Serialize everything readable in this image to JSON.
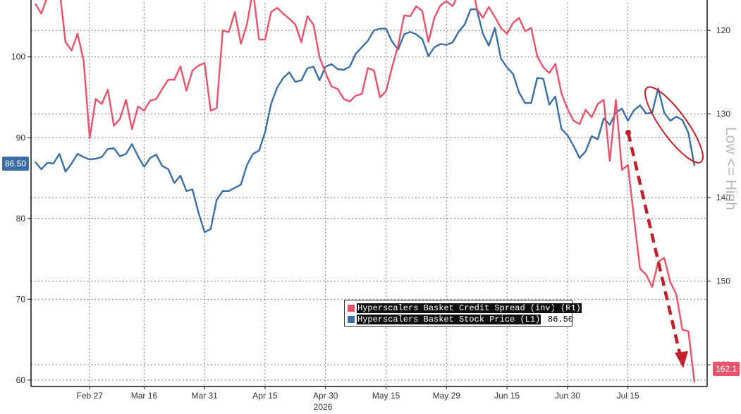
{
  "chart_data": {
    "type": "line",
    "title": "",
    "xlabel": "2026",
    "x_ticks": [
      "Feb 27",
      "Mar 16",
      "Mar 31",
      "Apr 15",
      "Apr 30",
      "May 15",
      "May 29",
      "Jun 15",
      "Jun 30",
      "Jul 15"
    ],
    "y_left": {
      "ticks": [
        60,
        70,
        80,
        90,
        100
      ],
      "range": [
        59.2,
        106.7
      ]
    },
    "y_right": {
      "ticks": [
        120,
        130,
        140,
        150,
        160
      ],
      "range": [
        116.7,
        162.6
      ],
      "inverted": true,
      "label": "Low <= High"
    },
    "last_values": {
      "left": "86.50",
      "right": "162.1"
    },
    "legend": [
      {
        "name": "Hyperscalers Basket Credit Spread (inv) (R1)",
        "value": "162.1",
        "color": "#e8526b"
      },
      {
        "name": "Hyperscalers Basket Stock Price (L1)",
        "value": "86.50",
        "color": "#3a6ea5"
      }
    ],
    "series": [
      {
        "name": "Hyperscalers Basket Stock Price (L1)",
        "axis": "left",
        "color": "#3a6ea5",
        "points": [
          [
            0,
            87.0
          ],
          [
            1,
            86.1
          ],
          [
            2,
            86.9
          ],
          [
            3,
            86.8
          ],
          [
            4,
            88.0
          ],
          [
            5,
            85.8
          ],
          [
            6,
            86.8
          ],
          [
            7,
            88.0
          ],
          [
            8,
            87.6
          ],
          [
            9,
            87.3
          ],
          [
            10,
            87.4
          ],
          [
            11,
            87.6
          ],
          [
            12,
            88.6
          ],
          [
            13,
            88.7
          ],
          [
            14,
            87.7
          ],
          [
            15,
            88.0
          ],
          [
            16,
            89.2
          ],
          [
            17,
            87.7
          ],
          [
            18,
            86.4
          ],
          [
            19,
            87.5
          ],
          [
            20,
            87.9
          ],
          [
            21,
            86.5
          ],
          [
            22,
            86.1
          ],
          [
            23,
            84.4
          ],
          [
            24,
            85.3
          ],
          [
            25,
            83.4
          ],
          [
            26,
            83.6
          ],
          [
            27,
            80.7
          ],
          [
            28,
            78.3
          ],
          [
            29,
            78.7
          ],
          [
            30,
            82.3
          ],
          [
            31,
            83.4
          ],
          [
            32,
            83.4
          ],
          [
            33,
            83.8
          ],
          [
            34,
            84.2
          ],
          [
            35,
            86.6
          ],
          [
            36,
            88.0
          ],
          [
            37,
            88.4
          ],
          [
            38,
            90.7
          ],
          [
            39,
            94.2
          ],
          [
            40,
            96.2
          ],
          [
            41,
            97.4
          ],
          [
            42,
            98.1
          ],
          [
            43,
            96.9
          ],
          [
            44,
            97.1
          ],
          [
            45,
            98.6
          ],
          [
            46,
            98.8
          ],
          [
            47,
            97.1
          ],
          [
            48,
            98.8
          ],
          [
            49,
            99.1
          ],
          [
            50,
            98.5
          ],
          [
            51,
            98.4
          ],
          [
            52,
            98.8
          ],
          [
            53,
            100.4
          ],
          [
            54,
            101.2
          ],
          [
            55,
            102.0
          ],
          [
            56,
            103.3
          ],
          [
            57,
            103.5
          ],
          [
            58,
            103.5
          ],
          [
            59,
            101.9
          ],
          [
            60,
            100.9
          ],
          [
            61,
            102.8
          ],
          [
            62,
            103.1
          ],
          [
            63,
            102.8
          ],
          [
            64,
            102.2
          ],
          [
            65,
            100.1
          ],
          [
            66,
            101.2
          ],
          [
            67,
            101.6
          ],
          [
            68,
            101.5
          ],
          [
            69,
            101.8
          ],
          [
            70,
            103.1
          ],
          [
            71,
            104.0
          ],
          [
            72,
            105.9
          ],
          [
            73,
            105.9
          ],
          [
            74,
            102.9
          ],
          [
            75,
            101.4
          ],
          [
            76,
            103.6
          ],
          [
            77,
            99.8
          ],
          [
            78,
            98.7
          ],
          [
            79,
            97.9
          ],
          [
            80,
            95.6
          ],
          [
            81,
            94.3
          ],
          [
            82,
            94.3
          ],
          [
            83,
            97.4
          ],
          [
            84,
            97.3
          ],
          [
            85,
            94.1
          ],
          [
            86,
            95.1
          ],
          [
            87,
            91.1
          ],
          [
            88,
            90.3
          ],
          [
            89,
            89.0
          ],
          [
            90,
            87.5
          ],
          [
            91,
            88.3
          ],
          [
            92,
            90.2
          ],
          [
            93,
            89.8
          ],
          [
            94,
            92.4
          ],
          [
            95,
            91.6
          ],
          [
            96,
            93.1
          ],
          [
            97,
            93.6
          ],
          [
            98,
            92.1
          ],
          [
            99,
            93.4
          ],
          [
            100,
            94.0
          ],
          [
            101,
            93.0
          ],
          [
            102,
            93.1
          ],
          [
            103,
            96.1
          ],
          [
            104,
            93.1
          ],
          [
            105,
            92.1
          ],
          [
            106,
            92.6
          ],
          [
            107,
            92.2
          ],
          [
            108,
            90.6
          ],
          [
            109,
            86.5
          ]
        ]
      },
      {
        "name": "Hyperscalers Basket Credit Spread (inv) (R1)",
        "axis": "right",
        "color": "#e8526b",
        "points": [
          [
            0,
            116.8
          ],
          [
            1,
            118.0
          ],
          [
            2,
            116.0
          ],
          [
            3,
            115.4
          ],
          [
            4,
            115.0
          ],
          [
            5,
            121.4
          ],
          [
            6,
            122.4
          ],
          [
            7,
            120.4
          ],
          [
            8,
            123.6
          ],
          [
            9,
            132.9
          ],
          [
            10,
            128.2
          ],
          [
            11,
            128.8
          ],
          [
            12,
            127.1
          ],
          [
            13,
            131.4
          ],
          [
            14,
            130.6
          ],
          [
            15,
            128.3
          ],
          [
            16,
            131.8
          ],
          [
            17,
            129.1
          ],
          [
            18,
            129.6
          ],
          [
            19,
            128.4
          ],
          [
            20,
            128.2
          ],
          [
            21,
            127.0
          ],
          [
            22,
            125.9
          ],
          [
            23,
            125.9
          ],
          [
            24,
            124.3
          ],
          [
            25,
            127.2
          ],
          [
            26,
            124.8
          ],
          [
            27,
            124.2
          ],
          [
            28,
            123.9
          ],
          [
            29,
            129.6
          ],
          [
            30,
            129.3
          ],
          [
            31,
            120.0
          ],
          [
            32,
            120.2
          ],
          [
            33,
            117.8
          ],
          [
            34,
            121.6
          ],
          [
            35,
            119.3
          ],
          [
            36,
            115.2
          ],
          [
            37,
            121.1
          ],
          [
            38,
            121.1
          ],
          [
            39,
            117.8
          ],
          [
            40,
            117.3
          ],
          [
            41,
            118.0
          ],
          [
            42,
            118.6
          ],
          [
            43,
            119.3
          ],
          [
            44,
            121.4
          ],
          [
            45,
            118.3
          ],
          [
            46,
            119.3
          ],
          [
            47,
            123.2
          ],
          [
            48,
            125.1
          ],
          [
            49,
            126.7
          ],
          [
            50,
            127.0
          ],
          [
            51,
            128.2
          ],
          [
            52,
            128.5
          ],
          [
            53,
            127.8
          ],
          [
            54,
            127.6
          ],
          [
            55,
            124.5
          ],
          [
            56,
            124.8
          ],
          [
            57,
            128.0
          ],
          [
            58,
            127.3
          ],
          [
            59,
            124.4
          ],
          [
            60,
            121.8
          ],
          [
            61,
            118.2
          ],
          [
            62,
            118.3
          ],
          [
            63,
            117.1
          ],
          [
            64,
            117.7
          ],
          [
            65,
            121.4
          ],
          [
            66,
            118.5
          ],
          [
            67,
            117.0
          ],
          [
            68,
            116.5
          ],
          [
            69,
            117.1
          ],
          [
            70,
            115.7
          ],
          [
            71,
            114.6
          ],
          [
            72,
            113.2
          ],
          [
            73,
            117.4
          ],
          [
            74,
            118.5
          ],
          [
            75,
            117.2
          ],
          [
            76,
            118.4
          ],
          [
            77,
            119.7
          ],
          [
            78,
            120.4
          ],
          [
            79,
            119.1
          ],
          [
            80,
            118.5
          ],
          [
            81,
            120.1
          ],
          [
            82,
            119.7
          ],
          [
            83,
            123.1
          ],
          [
            84,
            124.4
          ],
          [
            85,
            125.1
          ],
          [
            86,
            124.0
          ],
          [
            87,
            127.5
          ],
          [
            88,
            129.4
          ],
          [
            89,
            130.8
          ],
          [
            90,
            131.2
          ],
          [
            91,
            129.5
          ],
          [
            92,
            130.4
          ],
          [
            93,
            128.8
          ],
          [
            94,
            128.3
          ],
          [
            95,
            135.6
          ],
          [
            96,
            128.3
          ],
          [
            97,
            136.7
          ],
          [
            98,
            136.1
          ],
          [
            99,
            142.4
          ],
          [
            100,
            148.5
          ],
          [
            101,
            149.2
          ],
          [
            102,
            150.7
          ],
          [
            103,
            147.7
          ],
          [
            104,
            147.2
          ],
          [
            105,
            150.1
          ],
          [
            106,
            151.6
          ],
          [
            107,
            155.8
          ],
          [
            108,
            156.0
          ],
          [
            109,
            162.1
          ]
        ]
      }
    ]
  }
}
